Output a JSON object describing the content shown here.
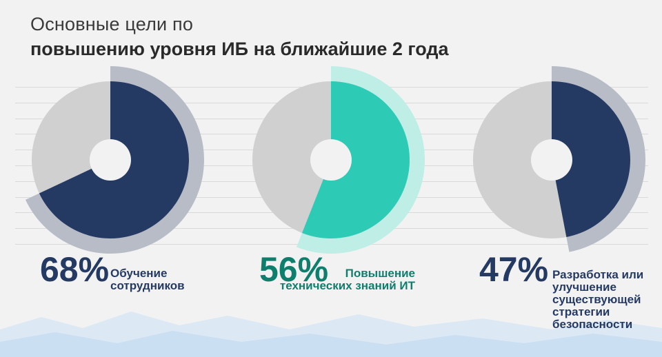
{
  "header": {
    "title_line1": "Основные цели по",
    "title_line2": "повышению уровня ИБ на ближайшие 2 года"
  },
  "colors": {
    "navy": "#253a63",
    "teal": "#2dcbb5",
    "teal_text": "#0f7f6d",
    "remainder": "#d0d0d0",
    "ring_gray": "#b7bcc6",
    "ring_teal": "#bfeee7"
  },
  "chart_data": {
    "type": "pie",
    "title": "Основные цели по повышению уровня ИБ на ближайшие 2 года",
    "unit": "%",
    "series": [
      {
        "name": "Обучение сотрудников",
        "value": 68,
        "label": "68%",
        "caption": "Обучение\nсотрудников",
        "color": "navy"
      },
      {
        "name": "Повышение технических знаний ИТ",
        "value": 56,
        "label": "56%",
        "caption": "Повышение\nтехнических знаний ИТ",
        "color": "teal"
      },
      {
        "name": "Разработка или улучшение существующей стратегии безопасности",
        "value": 47,
        "label": "47%",
        "caption": "Разработка или\nулучшение\nсуществующей\nстратегии\nбезопасности",
        "color": "navy"
      }
    ]
  }
}
